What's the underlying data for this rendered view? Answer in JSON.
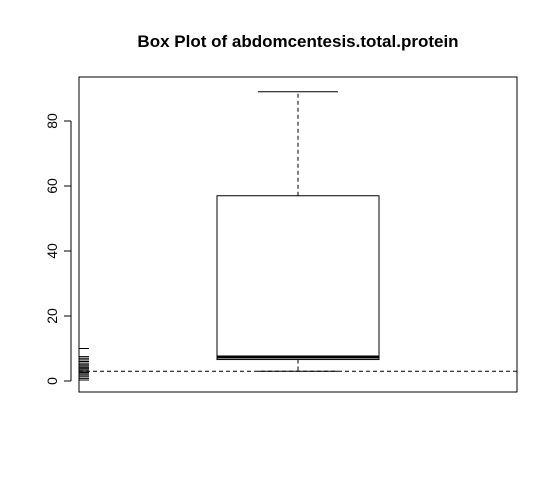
{
  "chart_data": {
    "type": "box",
    "title": "Box Plot of abdomcentesis.total.protein",
    "xlabel": "",
    "ylabel": "",
    "ylim": [
      0,
      92
    ],
    "yticks": [
      "0",
      "20",
      "40",
      "60",
      "80"
    ],
    "grid": false,
    "box": {
      "whisker_low": 3.0,
      "q1": 6.6,
      "median": 7.4,
      "q3": 57.0,
      "whisker_high": 89.0
    },
    "reference_line_y": 3.0,
    "rug_values": [
      0.3,
      0.8,
      1.3,
      1.8,
      2.2,
      2.6,
      3.0,
      3.4,
      3.8,
      4.2,
      4.6,
      5.0,
      5.5,
      6.0,
      6.5,
      7.0,
      7.5,
      10.0
    ],
    "colors": {
      "ink": "#000000",
      "background": "#ffffff"
    }
  }
}
